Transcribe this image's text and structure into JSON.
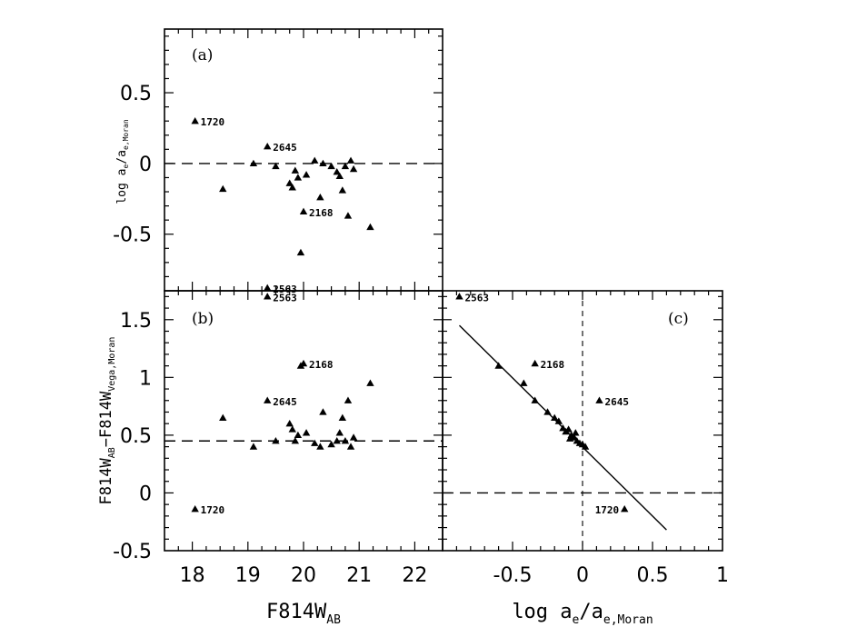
{
  "chart_data": [
    {
      "panel": "a",
      "type": "scatter",
      "panel_label": "(a)",
      "xlabel": "",
      "ylabel_main": "log a",
      "ylabel_sub1": "e",
      "ylabel_mid": "/a",
      "ylabel_sub2": "e,Moran",
      "xlim": [
        17.5,
        22.5
      ],
      "ylim": [
        -0.9,
        0.95
      ],
      "yticks": [
        0.5,
        0,
        -0.5
      ],
      "ytick_labels": [
        "0.5",
        "0",
        "-0.5"
      ],
      "reference_y": 0,
      "points": [
        [
          18.05,
          0.3
        ],
        [
          18.55,
          -0.18
        ],
        [
          19.1,
          0.0
        ],
        [
          19.35,
          0.12
        ],
        [
          19.5,
          -0.02
        ],
        [
          19.75,
          -0.14
        ],
        [
          19.8,
          -0.17
        ],
        [
          19.85,
          -0.05
        ],
        [
          19.9,
          -0.1
        ],
        [
          19.95,
          -0.63
        ],
        [
          20.0,
          -0.34
        ],
        [
          20.05,
          -0.08
        ],
        [
          20.2,
          0.02
        ],
        [
          20.3,
          -0.24
        ],
        [
          20.35,
          0.0
        ],
        [
          20.5,
          -0.02
        ],
        [
          20.6,
          -0.06
        ],
        [
          20.65,
          -0.09
        ],
        [
          20.7,
          -0.19
        ],
        [
          20.75,
          -0.02
        ],
        [
          20.8,
          -0.37
        ],
        [
          20.85,
          0.02
        ],
        [
          20.9,
          -0.04
        ],
        [
          21.2,
          -0.45
        ],
        [
          19.35,
          -0.88
        ]
      ],
      "annotations": [
        {
          "id": "a-1720",
          "text": "1720",
          "x": 18.05,
          "y": 0.3
        },
        {
          "id": "a-2645",
          "text": "2645",
          "x": 19.35,
          "y": 0.12
        },
        {
          "id": "a-2168",
          "text": "2168",
          "x": 20.0,
          "y": -0.34
        },
        {
          "id": "a-2563",
          "text": "2563",
          "x": 19.35,
          "y": -0.88
        }
      ]
    },
    {
      "panel": "b",
      "type": "scatter",
      "panel_label": "(b)",
      "xlabel_main": "F814W",
      "xlabel_sub": "AB",
      "ylabel_main": "F814W",
      "ylabel_sub1": "AB",
      "ylabel_mid": "−F814W",
      "ylabel_sub2": "Vega,Moran",
      "xlim": [
        17.5,
        22.5
      ],
      "ylim": [
        -0.5,
        1.75
      ],
      "xticks": [
        18,
        19,
        20,
        21,
        22
      ],
      "xtick_labels": [
        "18",
        "19",
        "20",
        "21",
        "22"
      ],
      "yticks": [
        1.5,
        1,
        0.5,
        0,
        -0.5
      ],
      "ytick_labels": [
        "1.5",
        "1",
        "0.5",
        "0",
        "-0.5"
      ],
      "reference_y": 0.45,
      "points": [
        [
          18.05,
          -0.14
        ],
        [
          18.55,
          0.65
        ],
        [
          19.1,
          0.4
        ],
        [
          19.35,
          0.8
        ],
        [
          19.5,
          0.45
        ],
        [
          19.75,
          0.6
        ],
        [
          19.8,
          0.55
        ],
        [
          19.85,
          0.45
        ],
        [
          19.9,
          0.5
        ],
        [
          19.95,
          1.1
        ],
        [
          20.0,
          1.12
        ],
        [
          20.05,
          0.52
        ],
        [
          20.2,
          0.43
        ],
        [
          20.3,
          0.4
        ],
        [
          20.35,
          0.7
        ],
        [
          20.5,
          0.42
        ],
        [
          20.6,
          0.45
        ],
        [
          20.65,
          0.52
        ],
        [
          20.7,
          0.65
        ],
        [
          20.75,
          0.45
        ],
        [
          20.8,
          0.8
        ],
        [
          20.85,
          0.4
        ],
        [
          20.9,
          0.48
        ],
        [
          21.2,
          0.95
        ],
        [
          19.35,
          1.7
        ]
      ],
      "annotations": [
        {
          "id": "b-1720",
          "text": "1720",
          "x": 18.05,
          "y": -0.14
        },
        {
          "id": "b-2645",
          "text": "2645",
          "x": 19.35,
          "y": 0.8
        },
        {
          "id": "b-2168",
          "text": "2168",
          "x": 20.0,
          "y": 1.12
        },
        {
          "id": "b-2563",
          "text": "2563",
          "x": 19.35,
          "y": 1.7
        }
      ]
    },
    {
      "panel": "c",
      "type": "scatter",
      "panel_label": "(c)",
      "xlabel_main": "log  a",
      "xlabel_sub1": "e",
      "xlabel_mid": "/a",
      "xlabel_sub2": "e,Moran",
      "xlim": [
        -1.0,
        1.0
      ],
      "ylim": [
        -0.5,
        1.75
      ],
      "xticks": [
        -0.5,
        0,
        0.5,
        1
      ],
      "xtick_labels": [
        "-0.5",
        "0",
        "0.5",
        "1"
      ],
      "reference_y": 0,
      "reference_x": 0,
      "fit_line": {
        "x1": -0.88,
        "y1": 1.45,
        "x2": 0.6,
        "y2": -0.32
      },
      "points": [
        [
          -0.88,
          1.7
        ],
        [
          -0.6,
          1.1
        ],
        [
          -0.42,
          0.95
        ],
        [
          -0.34,
          0.8
        ],
        [
          -0.34,
          1.12
        ],
        [
          -0.25,
          0.7
        ],
        [
          -0.2,
          0.65
        ],
        [
          -0.17,
          0.62
        ],
        [
          -0.14,
          0.56
        ],
        [
          -0.12,
          0.53
        ],
        [
          -0.1,
          0.55
        ],
        [
          -0.08,
          0.5
        ],
        [
          -0.06,
          0.48
        ],
        [
          -0.04,
          0.45
        ],
        [
          -0.02,
          0.43
        ],
        [
          0.0,
          0.42
        ],
        [
          0.02,
          0.4
        ],
        [
          -0.09,
          0.47
        ],
        [
          -0.05,
          0.52
        ],
        [
          0.12,
          0.8
        ],
        [
          0.3,
          -0.14
        ]
      ],
      "annotations": [
        {
          "id": "c-2563",
          "text": "2563",
          "x": -0.88,
          "y": 1.7
        },
        {
          "id": "c-2168",
          "text": "2168",
          "x": -0.34,
          "y": 1.12
        },
        {
          "id": "c-2645",
          "text": "2645",
          "x": 0.12,
          "y": 0.8
        },
        {
          "id": "c-1720",
          "text": "1720",
          "x": 0.3,
          "y": -0.14
        }
      ]
    }
  ]
}
